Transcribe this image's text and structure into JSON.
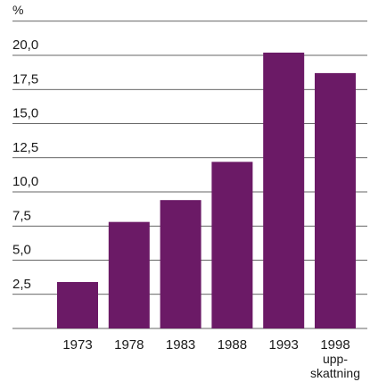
{
  "chart_data": {
    "type": "bar",
    "unit": "%",
    "categories": [
      "1973",
      "1978",
      "1983",
      "1988",
      "1993",
      "1998"
    ],
    "category_notes": [
      "",
      "",
      "",
      "",
      "",
      "upp-\nskattning"
    ],
    "values": [
      3.4,
      7.8,
      9.4,
      12.2,
      20.2,
      18.7
    ],
    "y_ticks": [
      "2,5",
      "5,0",
      "7,5",
      "10,0",
      "12,5",
      "15,0",
      "17,5",
      "20,0"
    ],
    "ylim": [
      0,
      22.5
    ],
    "grid": true,
    "bar_color": "#6b1a66",
    "title": "",
    "xlabel": "",
    "ylabel": ""
  }
}
